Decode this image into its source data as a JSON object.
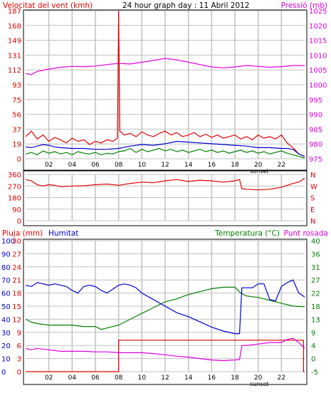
{
  "title": "24 hour graph day : 11 Abril 2012",
  "colors": {
    "red": "#e00000",
    "blue": "#0000cc",
    "green": "#008000",
    "magenta": "#e000e0",
    "grid": "#c0c0c0",
    "frame": "#000000"
  },
  "chart_data": [
    {
      "type": "line",
      "name": "wind-and-pressure",
      "left_label": "Velocitat del vent (kmh)",
      "right_label": "Pressió (mb)",
      "x_ticks": [
        "02",
        "04",
        "06",
        "08",
        "10",
        "12",
        "14",
        "16",
        "18",
        "20",
        "22"
      ],
      "x_note": "sunset",
      "xlim": [
        0,
        24
      ],
      "left_ticks": [
        "187",
        "168",
        "149",
        "131",
        "112",
        "93",
        "75",
        "56",
        "37",
        "19",
        "0"
      ],
      "left_ylim": [
        0,
        187
      ],
      "right_ticks": [
        "1025",
        "1020",
        "1015",
        "1010",
        "1005",
        "1000",
        "995",
        "990",
        "985",
        "980",
        "975"
      ],
      "right_ylim": [
        975,
        1025
      ],
      "series": [
        {
          "color": "red",
          "axis": "left",
          "x": [
            0,
            0.5,
            1,
            1.5,
            2,
            2.5,
            3,
            3.5,
            4,
            4.5,
            5,
            5.5,
            6,
            6.5,
            7,
            7.5,
            7.9,
            8.0,
            8.1,
            8.5,
            9,
            9.5,
            10,
            10.5,
            11,
            11.5,
            12,
            12.5,
            13,
            13.5,
            14,
            14.5,
            15,
            15.5,
            16,
            16.5,
            17,
            17.5,
            18,
            18.5,
            19,
            19.5,
            20,
            20.5,
            21,
            21.5,
            22,
            22.5,
            23,
            23.5,
            24
          ],
          "y": [
            28,
            35,
            25,
            30,
            22,
            27,
            24,
            20,
            26,
            22,
            24,
            18,
            22,
            20,
            24,
            22,
            26,
            187,
            35,
            30,
            32,
            28,
            34,
            30,
            28,
            32,
            35,
            30,
            33,
            28,
            30,
            33,
            28,
            31,
            27,
            30,
            26,
            28,
            30,
            25,
            28,
            24,
            30,
            26,
            28,
            25,
            30,
            20,
            14,
            6,
            3
          ]
        },
        {
          "color": "blue",
          "axis": "left",
          "x": [
            0,
            0.5,
            1,
            1.5,
            2,
            2.5,
            3,
            4,
            5,
            6,
            7,
            8,
            9,
            10,
            11,
            12,
            13,
            14,
            15,
            16,
            17,
            18,
            19,
            20,
            21,
            22,
            22.5,
            23,
            23.5,
            24
          ],
          "y": [
            15,
            14,
            16,
            18,
            17,
            15,
            14,
            13,
            13,
            12,
            12,
            13,
            16,
            18,
            17,
            19,
            22,
            21,
            20,
            19,
            18,
            17,
            16,
            14,
            14,
            13,
            13,
            12,
            6,
            3
          ]
        },
        {
          "color": "green",
          "axis": "left",
          "x": [
            0,
            0.5,
            1,
            1.5,
            2,
            2.5,
            3,
            3.5,
            4,
            4.5,
            5,
            5.5,
            6,
            6.5,
            7,
            7.5,
            8,
            8.5,
            9,
            9.5,
            10,
            10.5,
            11,
            11.5,
            12,
            12.5,
            13,
            13.5,
            14,
            14.5,
            15,
            15.5,
            16,
            16.5,
            17,
            17.5,
            18,
            18.5,
            19,
            19.5,
            20,
            20.5,
            21,
            21.5,
            22,
            22.5,
            23,
            23.5,
            24
          ],
          "y": [
            6,
            8,
            5,
            10,
            7,
            9,
            6,
            8,
            5,
            9,
            7,
            6,
            8,
            5,
            7,
            6,
            9,
            10,
            13,
            8,
            12,
            9,
            11,
            13,
            10,
            12,
            9,
            11,
            8,
            10,
            12,
            9,
            11,
            8,
            10,
            7,
            9,
            11,
            8,
            10,
            7,
            9,
            6,
            8,
            10,
            7,
            5,
            3,
            1
          ]
        },
        {
          "color": "magenta",
          "axis": "right",
          "x": [
            0,
            0.5,
            1,
            2,
            3,
            4,
            5,
            6,
            7,
            8,
            9,
            10,
            11,
            12,
            13,
            14,
            15,
            16,
            17,
            18,
            19,
            20,
            21,
            22,
            23,
            24
          ],
          "y": [
            1003.8,
            1003.4,
            1004.5,
            1005.3,
            1005.9,
            1006.2,
            1006.1,
            1006.3,
            1006.8,
            1007.2,
            1007.0,
            1007.6,
            1008.2,
            1008.9,
            1008.4,
            1007.6,
            1006.8,
            1006.0,
            1005.7,
            1006.0,
            1006.5,
            1006.2,
            1005.9,
            1006.1,
            1006.5,
            1006.5
          ]
        }
      ]
    },
    {
      "type": "line",
      "name": "wind-direction",
      "left_ticks": [
        "360",
        "270",
        "180",
        "90",
        "0"
      ],
      "left_ylim": [
        0,
        360
      ],
      "right_ticks": [
        "N",
        "W",
        "S",
        "E",
        "N"
      ],
      "xlim": [
        0,
        24
      ],
      "series": [
        {
          "color": "red",
          "axis": "left",
          "x": [
            0,
            0.5,
            1,
            1.5,
            2,
            2.5,
            3,
            4,
            5,
            6,
            7,
            8,
            9,
            10,
            11,
            12,
            13,
            14,
            15,
            16,
            17,
            18,
            18.4,
            18.6,
            19,
            20,
            21,
            22,
            22.5,
            23,
            23.5,
            24
          ],
          "y": [
            320,
            310,
            280,
            270,
            280,
            275,
            265,
            270,
            272,
            280,
            285,
            275,
            290,
            300,
            295,
            310,
            320,
            305,
            315,
            310,
            300,
            310,
            320,
            250,
            245,
            240,
            245,
            260,
            275,
            290,
            300,
            330
          ]
        }
      ]
    },
    {
      "type": "line",
      "name": "rain-humidity-temperature",
      "left_label_rain": "Pluja (mm)",
      "left_label_humidity": "Humitat",
      "right_label_temperature": "Temperatura (°C)",
      "right_label_dewpoint": "Punt rosada",
      "x_ticks": [
        "02",
        "04",
        "06",
        "08",
        "10",
        "12",
        "14",
        "16",
        "18",
        "20",
        "22"
      ],
      "x_note": "sunset",
      "xlim": [
        0,
        24
      ],
      "rain_ticks": [
        "30",
        "27",
        "24",
        "21",
        "18",
        "15",
        "12",
        "9",
        "6",
        "3",
        "0"
      ],
      "humidity_ticks": [
        "100",
        "90",
        "80",
        "70",
        "60",
        "50",
        "40",
        "30",
        "20",
        "10",
        "0"
      ],
      "right_ticks": [
        "40",
        "36",
        "31",
        "27",
        "22",
        "18",
        "13",
        "9",
        "4",
        "0",
        "-5"
      ],
      "rain_ylim": [
        0,
        30
      ],
      "humidity_ylim": [
        0,
        100
      ],
      "temp_ylim": [
        -5,
        40
      ],
      "series": [
        {
          "color": "blue",
          "axis": "humidity",
          "x": [
            0,
            0.5,
            1,
            1.5,
            2,
            2.5,
            3,
            3.5,
            4,
            4.5,
            5,
            5.5,
            6,
            6.5,
            7,
            7.5,
            8,
            8.5,
            9,
            9.5,
            10,
            11,
            12,
            13,
            14,
            15,
            16,
            17,
            18,
            18.4,
            18.6,
            19,
            19.5,
            20,
            20.5,
            21,
            21.5,
            22,
            22.5,
            23,
            23.5,
            24
          ],
          "y": [
            66,
            65,
            68,
            67,
            66,
            67,
            66,
            65,
            62,
            60,
            65,
            66,
            65,
            62,
            60,
            63,
            66,
            67,
            66,
            64,
            60,
            55,
            50,
            45,
            42,
            38,
            34,
            31,
            29,
            29,
            64,
            64,
            64,
            67,
            67,
            55,
            54,
            65,
            68,
            70,
            60,
            57
          ]
        },
        {
          "color": "green",
          "axis": "temp",
          "x": [
            0,
            0.5,
            1,
            2,
            3,
            4,
            5,
            6,
            6.5,
            7,
            8,
            9,
            10,
            11,
            12,
            13,
            14,
            15,
            16,
            17,
            18,
            18.5,
            19,
            20,
            21,
            22,
            23,
            24
          ],
          "y": [
            13,
            12,
            11.5,
            11,
            11,
            11,
            10.5,
            10.5,
            9.5,
            10,
            11,
            13,
            15,
            17,
            19,
            20,
            21.5,
            22.5,
            23.5,
            24,
            24,
            22,
            21,
            20.5,
            19.5,
            18.5,
            17.5,
            17.3
          ]
        },
        {
          "color": "magenta",
          "axis": "temp",
          "x": [
            0,
            0.5,
            1,
            2,
            3,
            4,
            5,
            6,
            7,
            8,
            9,
            10,
            11,
            12,
            13,
            14,
            15,
            16,
            17,
            18,
            18.4,
            18.6,
            19,
            20,
            21,
            22,
            22.5,
            23,
            23.5,
            24
          ],
          "y": [
            3,
            2.5,
            3,
            2.5,
            2,
            2,
            2,
            1.8,
            1.8,
            1.5,
            1.5,
            1.5,
            1.2,
            0.8,
            0.3,
            0,
            -0.5,
            -1,
            -1.2,
            -1,
            -0.8,
            4,
            4,
            4.5,
            5,
            5,
            6,
            6.5,
            5,
            3
          ]
        },
        {
          "color": "red",
          "axis": "rain",
          "step": true,
          "x": [
            0,
            7.95,
            8.0,
            23.8,
            23.9,
            24
          ],
          "y": [
            0,
            0,
            7.2,
            7.2,
            0,
            0
          ]
        }
      ]
    }
  ]
}
